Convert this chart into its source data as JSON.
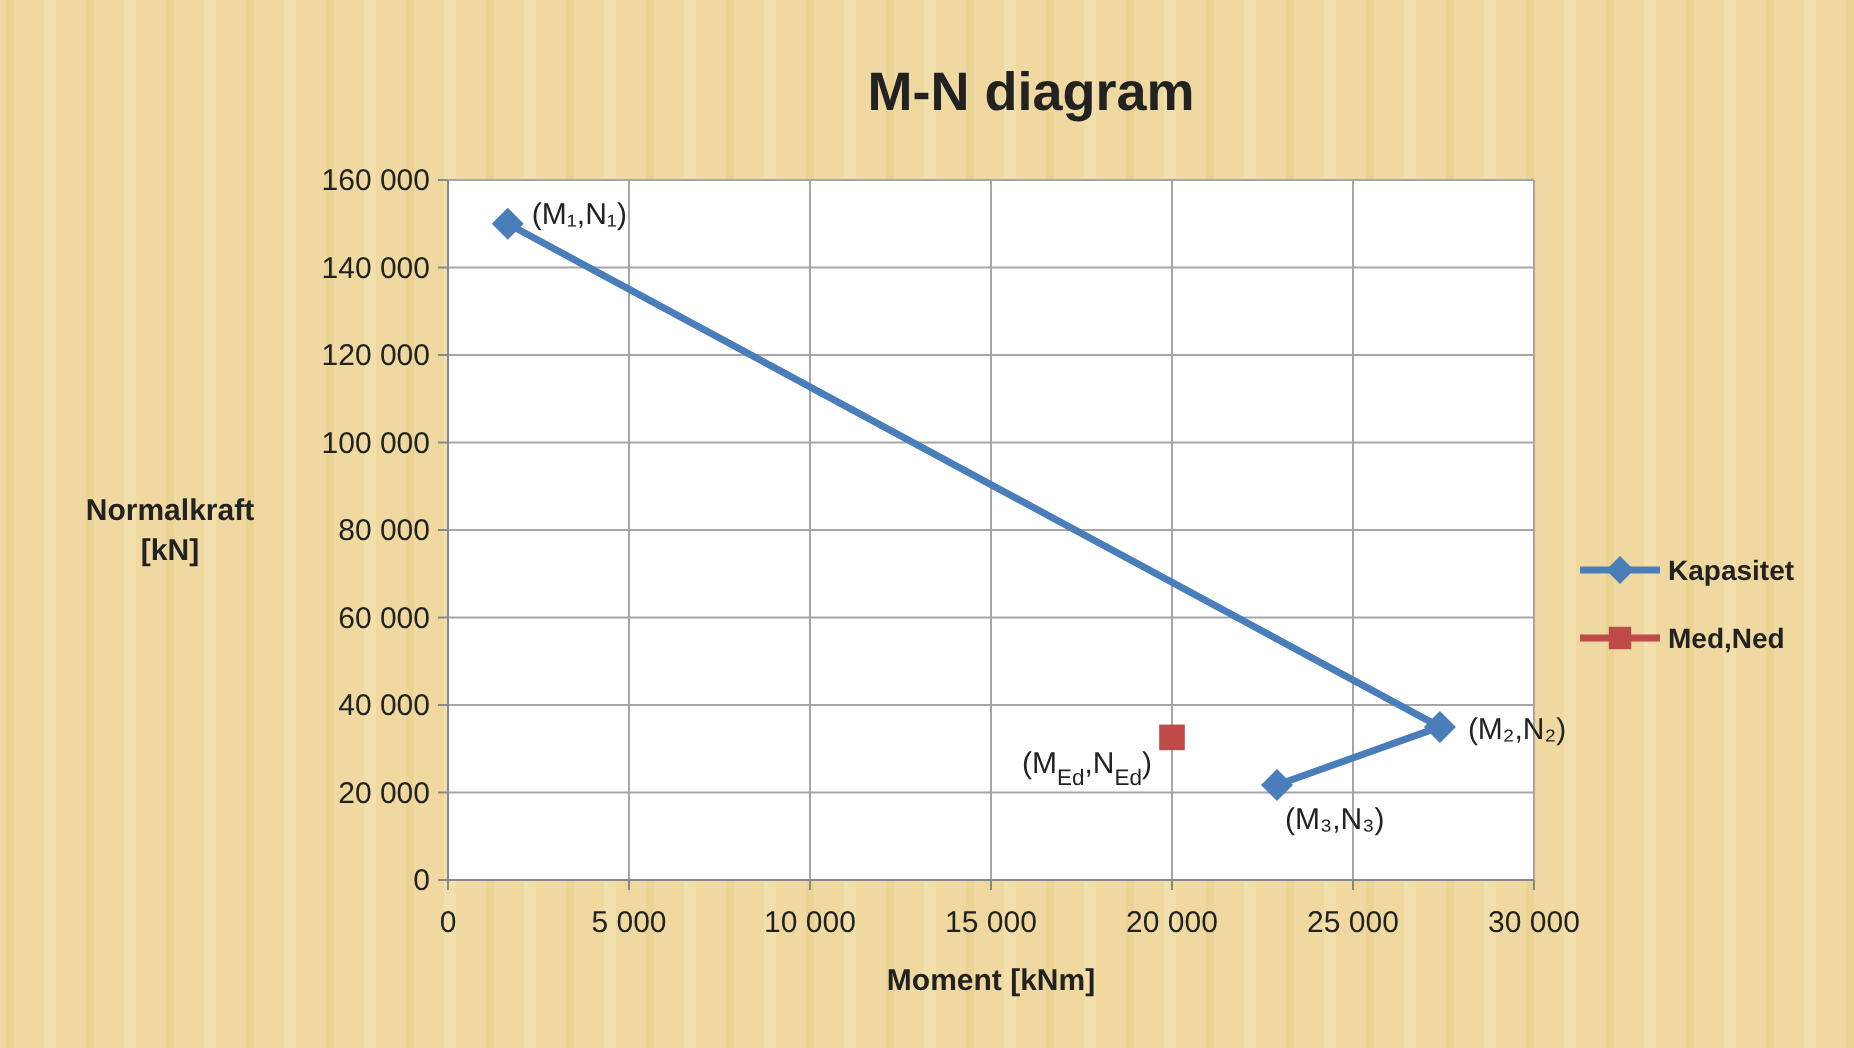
{
  "chart_data": {
    "type": "line",
    "title": "M-N diagram",
    "xlabel": "Moment [kNm]",
    "ylabel": "Normalkraft [kN]",
    "xlim": [
      0,
      30000
    ],
    "xticks": [
      0,
      {
        "value": 5000,
        "label": "5 000"
      },
      {
        "value": 10000,
        "label": "10 000"
      },
      {
        "value": 15000,
        "label": "15 000"
      },
      {
        "value": 20000,
        "label": "20 000"
      },
      {
        "value": 25000,
        "label": "25 000"
      },
      {
        "value": 30000,
        "label": "30 000"
      }
    ],
    "ylim": [
      0,
      160000
    ],
    "yticks": [
      0,
      {
        "value": 20000,
        "label": "20 000"
      },
      {
        "value": 40000,
        "label": "40 000"
      },
      {
        "value": 60000,
        "label": "60 000"
      },
      {
        "value": 80000,
        "label": "80 000"
      },
      {
        "value": 100000,
        "label": "100 000"
      },
      {
        "value": 120000,
        "label": "120 000"
      },
      {
        "value": 140000,
        "label": "140 000"
      },
      {
        "value": 160000,
        "label": "160 000"
      }
    ],
    "grid": true,
    "legend": "right",
    "series": [
      {
        "name": "Kapasitet",
        "type": "line",
        "color": "#4a7ebb",
        "marker": "diamond",
        "x": [
          1650,
          27400,
          22900
        ],
        "values": [
          150000,
          35000,
          21700
        ]
      },
      {
        "name": "Med,Ned",
        "type": "scatter",
        "color": "#be4b48",
        "marker": "square",
        "x": [
          20000
        ],
        "values": [
          32600
        ]
      }
    ],
    "annotations": [
      {
        "text": "(M₁,N₁)",
        "x": 1650,
        "y": 150000
      },
      {
        "text": "(M₂,N₂)",
        "x": 27400,
        "y": 35000
      },
      {
        "text": "(M₃,N₃)",
        "x": 22900,
        "y": 21700
      },
      {
        "text": "(M$_{Ed}$,N$_{Ed}$)",
        "x": 20000,
        "y": 32600
      }
    ]
  }
}
